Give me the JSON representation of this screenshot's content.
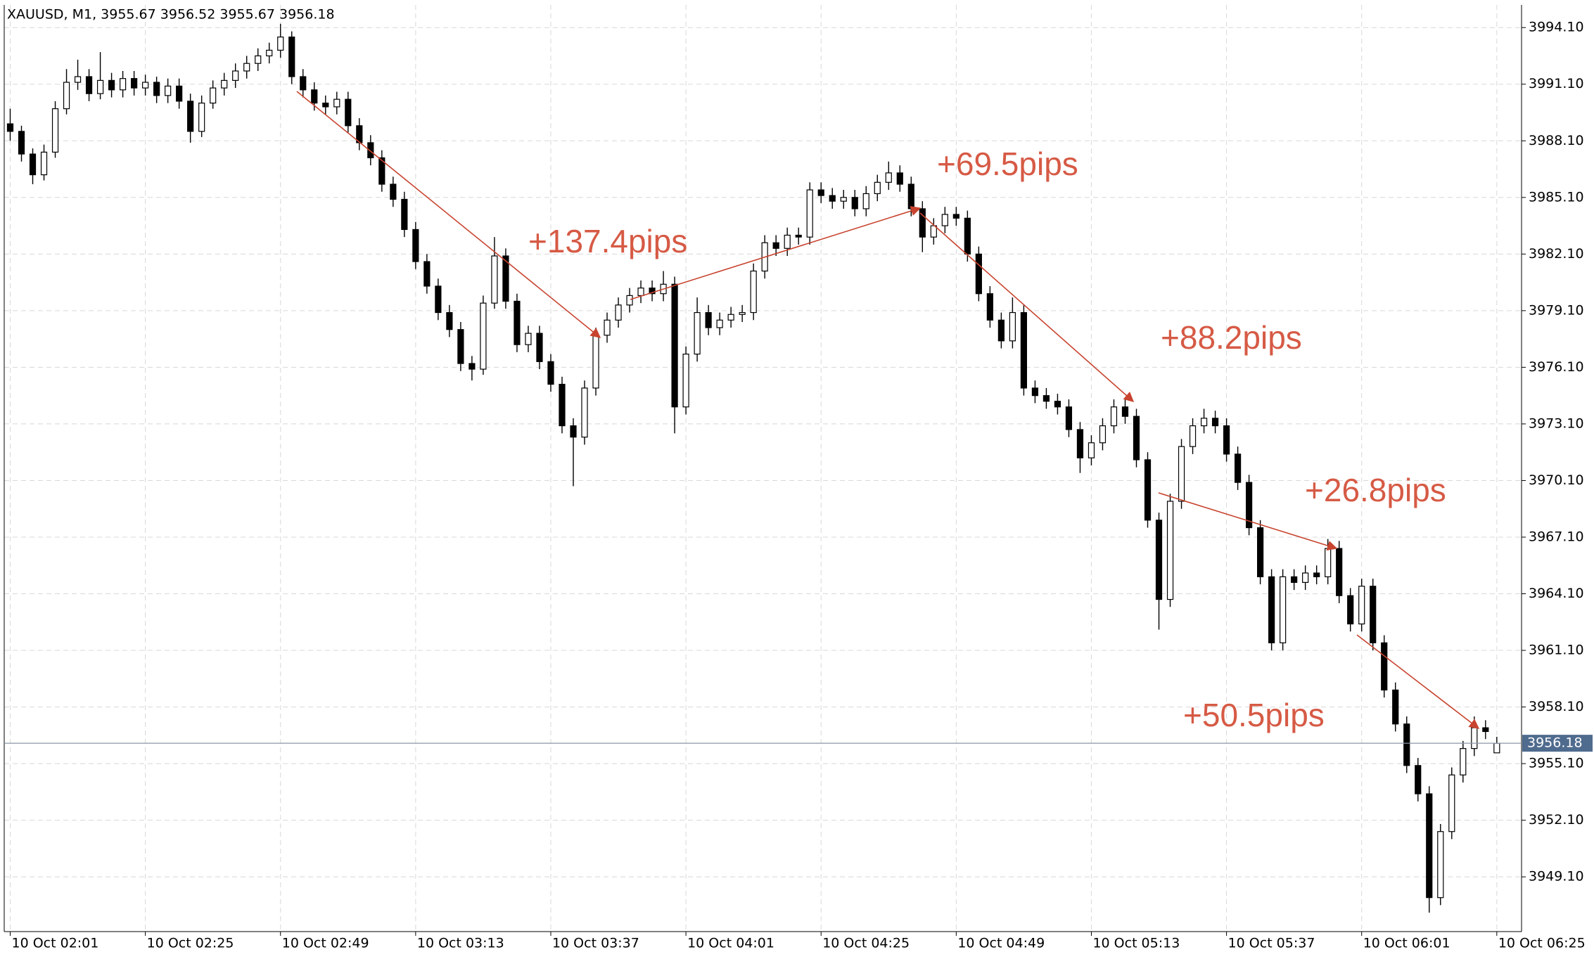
{
  "chart_data": {
    "type": "candlestick",
    "title": "XAUUSD, M1, 3955.67 3956.52 3955.67 3956.18",
    "categories": [
      "10 Oct 02:01",
      null,
      null,
      null,
      null,
      null,
      null,
      null,
      null,
      null,
      null,
      null,
      "10 Oct 02:25",
      null,
      null,
      null,
      null,
      null,
      null,
      null,
      null,
      null,
      null,
      null,
      "10 Oct 02:49",
      null,
      null,
      null,
      null,
      null,
      null,
      null,
      null,
      null,
      null,
      null,
      "10 Oct 03:13",
      null,
      null,
      null,
      null,
      null,
      null,
      null,
      null,
      null,
      null,
      null,
      "10 Oct 03:37",
      null,
      null,
      null,
      null,
      null,
      null,
      null,
      null,
      null,
      null,
      null,
      "10 Oct 04:01",
      null,
      null,
      null,
      null,
      null,
      null,
      null,
      null,
      null,
      null,
      null,
      "10 Oct 04:25",
      null,
      null,
      null,
      null,
      null,
      null,
      null,
      null,
      null,
      null,
      null,
      "10 Oct 04:49",
      null,
      null,
      null,
      null,
      null,
      null,
      null,
      null,
      null,
      null,
      null,
      "10 Oct 05:13",
      null,
      null,
      null,
      null,
      null,
      null,
      null,
      null,
      null,
      null,
      null,
      "10 Oct 05:37",
      null,
      null,
      null,
      null,
      null,
      null,
      null,
      null,
      null,
      null,
      null,
      "10 Oct 06:01",
      null,
      null,
      null,
      null,
      null,
      null,
      null,
      null,
      null,
      null,
      null,
      "10 Oct 06:25"
    ],
    "candles": [
      [
        3989.0,
        3989.8,
        3988.1,
        3988.6
      ],
      [
        3988.6,
        3988.9,
        3987.0,
        3987.4
      ],
      [
        3987.4,
        3987.7,
        3985.8,
        3986.3
      ],
      [
        3986.3,
        3987.9,
        3986.0,
        3987.5
      ],
      [
        3987.5,
        3990.2,
        3987.2,
        3989.8
      ],
      [
        3989.8,
        3991.9,
        3989.5,
        3991.2
      ],
      [
        3991.2,
        3992.4,
        3990.8,
        3991.5
      ],
      [
        3991.5,
        3991.9,
        3990.2,
        3990.6
      ],
      [
        3990.6,
        3992.8,
        3990.3,
        3991.3
      ],
      [
        3991.3,
        3991.7,
        3990.4,
        3990.8
      ],
      [
        3990.8,
        3991.8,
        3990.4,
        3991.4
      ],
      [
        3991.4,
        3991.8,
        3990.5,
        3990.9
      ],
      [
        3990.9,
        3991.6,
        3990.5,
        3991.2
      ],
      [
        3991.2,
        3991.5,
        3990.1,
        3990.5
      ],
      [
        3990.5,
        3991.4,
        3990.1,
        3991.0
      ],
      [
        3991.0,
        3991.4,
        3989.8,
        3990.2
      ],
      [
        3990.2,
        3990.6,
        3988.0,
        3988.6
      ],
      [
        3988.6,
        3990.5,
        3988.3,
        3990.1
      ],
      [
        3990.1,
        3991.3,
        3989.8,
        3990.9
      ],
      [
        3990.9,
        3991.7,
        3990.5,
        3991.3
      ],
      [
        3991.3,
        3992.2,
        3990.9,
        3991.8
      ],
      [
        3991.8,
        3992.6,
        3991.4,
        3992.2
      ],
      [
        3992.2,
        3993.0,
        3991.8,
        3992.6
      ],
      [
        3992.6,
        3993.3,
        3992.2,
        3992.9
      ],
      [
        3992.9,
        3994.3,
        3992.5,
        3993.6
      ],
      [
        3993.6,
        3993.9,
        3991.1,
        3991.5
      ],
      [
        3991.5,
        3991.9,
        3990.4,
        3990.8
      ],
      [
        3990.8,
        3991.2,
        3989.7,
        3990.1
      ],
      [
        3990.1,
        3990.5,
        3989.5,
        3989.9
      ],
      [
        3989.9,
        3990.7,
        3989.5,
        3990.3
      ],
      [
        3990.3,
        3990.7,
        3988.5,
        3988.9
      ],
      [
        3988.9,
        3989.3,
        3987.6,
        3988.0
      ],
      [
        3988.0,
        3988.4,
        3986.8,
        3987.2
      ],
      [
        3987.2,
        3987.6,
        3985.4,
        3985.8
      ],
      [
        3985.8,
        3986.2,
        3984.6,
        3985.0
      ],
      [
        3985.0,
        3985.4,
        3983.0,
        3983.4
      ],
      [
        3983.4,
        3983.8,
        3981.3,
        3981.7
      ],
      [
        3981.7,
        3982.1,
        3980.0,
        3980.4
      ],
      [
        3980.4,
        3980.8,
        3978.6,
        3979.0
      ],
      [
        3979.0,
        3979.4,
        3977.7,
        3978.1
      ],
      [
        3978.1,
        3978.5,
        3975.9,
        3976.3
      ],
      [
        3976.3,
        3976.7,
        3975.4,
        3976.0
      ],
      [
        3976.0,
        3979.9,
        3975.7,
        3979.5
      ],
      [
        3979.5,
        3983.0,
        3979.2,
        3982.0
      ],
      [
        3982.0,
        3982.4,
        3979.2,
        3979.6
      ],
      [
        3979.6,
        3980.0,
        3976.9,
        3977.3
      ],
      [
        3977.3,
        3978.3,
        3976.9,
        3977.9
      ],
      [
        3977.9,
        3978.3,
        3976.0,
        3976.4
      ],
      [
        3976.4,
        3976.8,
        3974.8,
        3975.2
      ],
      [
        3975.2,
        3975.6,
        3972.6,
        3973.0
      ],
      [
        3973.0,
        3973.4,
        3969.8,
        3972.4
      ],
      [
        3972.4,
        3975.4,
        3972.0,
        3975.0
      ],
      [
        3975.0,
        3978.2,
        3974.6,
        3977.8
      ],
      [
        3977.8,
        3979.0,
        3977.4,
        3978.6
      ],
      [
        3978.6,
        3979.8,
        3978.2,
        3979.4
      ],
      [
        3979.4,
        3980.3,
        3979.0,
        3979.9
      ],
      [
        3979.9,
        3980.7,
        3979.5,
        3980.3
      ],
      [
        3980.3,
        3980.7,
        3979.6,
        3980.0
      ],
      [
        3980.0,
        3981.2,
        3979.6,
        3980.5
      ],
      [
        3980.5,
        3980.9,
        3972.6,
        3974.0
      ],
      [
        3974.0,
        3977.2,
        3973.6,
        3976.8
      ],
      [
        3976.8,
        3979.8,
        3976.4,
        3979.0
      ],
      [
        3979.0,
        3979.4,
        3977.8,
        3978.2
      ],
      [
        3978.2,
        3979.0,
        3977.8,
        3978.6
      ],
      [
        3978.6,
        3979.3,
        3978.2,
        3978.9
      ],
      [
        3978.9,
        3979.4,
        3978.5,
        3979.0
      ],
      [
        3979.0,
        3981.6,
        3978.6,
        3981.2
      ],
      [
        3981.2,
        3983.1,
        3980.8,
        3982.7
      ],
      [
        3982.7,
        3983.1,
        3982.0,
        3982.4
      ],
      [
        3982.4,
        3983.5,
        3982.0,
        3983.1
      ],
      [
        3983.1,
        3983.5,
        3982.6,
        3983.0
      ],
      [
        3983.0,
        3985.9,
        3982.6,
        3985.5
      ],
      [
        3985.5,
        3985.9,
        3984.8,
        3985.2
      ],
      [
        3985.2,
        3985.6,
        3984.5,
        3984.9
      ],
      [
        3984.9,
        3985.5,
        3984.5,
        3985.1
      ],
      [
        3985.1,
        3985.5,
        3984.1,
        3984.5
      ],
      [
        3984.5,
        3985.7,
        3984.1,
        3985.3
      ],
      [
        3985.3,
        3986.3,
        3984.9,
        3985.9
      ],
      [
        3985.9,
        3987.0,
        3985.5,
        3986.4
      ],
      [
        3986.4,
        3986.8,
        3985.4,
        3985.8
      ],
      [
        3985.8,
        3986.2,
        3984.1,
        3984.5
      ],
      [
        3984.5,
        3984.9,
        3982.2,
        3983.0
      ],
      [
        3983.0,
        3984.0,
        3982.6,
        3983.6
      ],
      [
        3983.6,
        3984.6,
        3983.2,
        3984.2
      ],
      [
        3984.2,
        3984.6,
        3983.6,
        3984.0
      ],
      [
        3984.0,
        3984.4,
        3981.7,
        3982.1
      ],
      [
        3982.1,
        3982.5,
        3979.6,
        3980.0
      ],
      [
        3980.0,
        3980.4,
        3978.2,
        3978.6
      ],
      [
        3978.6,
        3979.0,
        3977.1,
        3977.5
      ],
      [
        3977.5,
        3979.8,
        3977.1,
        3979.0
      ],
      [
        3979.0,
        3979.4,
        3974.6,
        3975.0
      ],
      [
        3975.0,
        3975.4,
        3974.2,
        3974.6
      ],
      [
        3974.6,
        3975.0,
        3973.9,
        3974.3
      ],
      [
        3974.3,
        3974.7,
        3973.6,
        3974.0
      ],
      [
        3974.0,
        3974.4,
        3972.4,
        3972.8
      ],
      [
        3972.8,
        3973.2,
        3970.5,
        3971.3
      ],
      [
        3971.3,
        3972.5,
        3970.9,
        3972.1
      ],
      [
        3972.1,
        3973.4,
        3971.7,
        3973.0
      ],
      [
        3973.0,
        3974.4,
        3972.6,
        3974.0
      ],
      [
        3974.0,
        3974.4,
        3973.1,
        3973.5
      ],
      [
        3973.5,
        3973.9,
        3970.8,
        3971.2
      ],
      [
        3971.2,
        3971.6,
        3967.6,
        3968.0
      ],
      [
        3968.0,
        3968.4,
        3962.2,
        3963.8
      ],
      [
        3963.8,
        3969.4,
        3963.4,
        3969.0
      ],
      [
        3969.0,
        3972.3,
        3968.6,
        3971.9
      ],
      [
        3971.9,
        3973.4,
        3971.5,
        3973.0
      ],
      [
        3973.0,
        3973.9,
        3972.6,
        3973.4
      ],
      [
        3973.4,
        3973.8,
        3972.6,
        3973.0
      ],
      [
        3973.0,
        3973.4,
        3971.1,
        3971.5
      ],
      [
        3971.5,
        3971.9,
        3969.6,
        3970.0
      ],
      [
        3970.0,
        3970.4,
        3967.2,
        3967.6
      ],
      [
        3967.6,
        3968.0,
        3964.6,
        3965.0
      ],
      [
        3965.0,
        3965.4,
        3961.1,
        3961.5
      ],
      [
        3961.5,
        3965.4,
        3961.1,
        3965.0
      ],
      [
        3965.0,
        3965.4,
        3964.3,
        3964.7
      ],
      [
        3964.7,
        3965.6,
        3964.3,
        3965.2
      ],
      [
        3965.2,
        3965.6,
        3964.6,
        3965.0
      ],
      [
        3965.0,
        3967.0,
        3964.6,
        3966.5
      ],
      [
        3966.5,
        3966.9,
        3963.6,
        3964.0
      ],
      [
        3964.0,
        3964.4,
        3962.1,
        3962.5
      ],
      [
        3962.5,
        3964.9,
        3962.1,
        3964.5
      ],
      [
        3964.5,
        3964.9,
        3961.1,
        3961.5
      ],
      [
        3961.5,
        3961.9,
        3958.6,
        3959.0
      ],
      [
        3959.0,
        3959.4,
        3956.8,
        3957.2
      ],
      [
        3957.2,
        3957.6,
        3954.6,
        3955.0
      ],
      [
        3955.0,
        3955.4,
        3953.1,
        3953.5
      ],
      [
        3953.5,
        3953.9,
        3947.2,
        3948.0
      ],
      [
        3948.0,
        3951.9,
        3947.6,
        3951.5
      ],
      [
        3951.5,
        3954.9,
        3951.1,
        3954.5
      ],
      [
        3954.5,
        3956.3,
        3954.1,
        3955.9
      ],
      [
        3955.9,
        3957.6,
        3955.5,
        3957.0
      ],
      [
        3957.0,
        3957.4,
        3956.4,
        3956.8
      ],
      [
        3955.67,
        3956.52,
        3955.67,
        3956.18
      ]
    ],
    "up_color": "#ffffff",
    "down_color": "#000000",
    "ylim": [
      3946.2,
      3995.3
    ],
    "yticks": [
      {
        "value": 3949.1,
        "label": "3949.10"
      },
      {
        "value": 3952.1,
        "label": "3952.10"
      },
      {
        "value": 3955.1,
        "label": "3955.10"
      },
      {
        "value": 3958.1,
        "label": "3958.10"
      },
      {
        "value": 3961.1,
        "label": "3961.10"
      },
      {
        "value": 3964.1,
        "label": "3964.10"
      },
      {
        "value": 3967.1,
        "label": "3967.10"
      },
      {
        "value": 3970.1,
        "label": "3970.10"
      },
      {
        "value": 3973.1,
        "label": "3973.10"
      },
      {
        "value": 3976.1,
        "label": "3976.10"
      },
      {
        "value": 3979.1,
        "label": "3979.10"
      },
      {
        "value": 3982.1,
        "label": "3982.10"
      },
      {
        "value": 3985.1,
        "label": "3985.10"
      },
      {
        "value": 3988.1,
        "label": "3988.10"
      },
      {
        "value": 3991.1,
        "label": "3991.10"
      },
      {
        "value": 3994.1,
        "label": "3994.10"
      }
    ],
    "last_price": 3956.18,
    "grid": true,
    "annotations": [
      "+137.4pips",
      "+69.5pips",
      "+88.2pips",
      "+26.8pips",
      "+50.5pips"
    ]
  }
}
